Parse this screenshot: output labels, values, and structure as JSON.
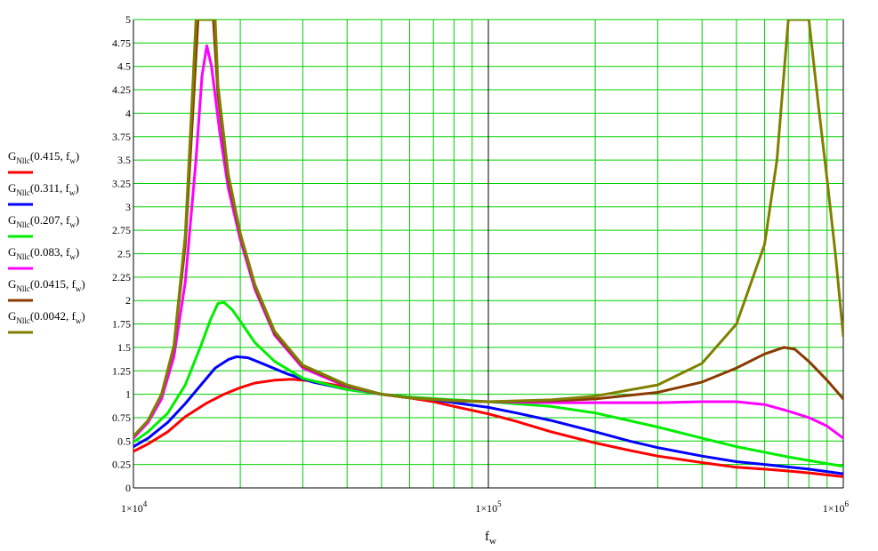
{
  "chart_data": {
    "type": "line",
    "xscale": "log",
    "xlim": [
      10000,
      1000000
    ],
    "ylim": [
      0,
      5
    ],
    "grid": true,
    "xlabel": {
      "main": "f",
      "sub": "w"
    },
    "x_ticks": [
      {
        "value": 10000,
        "mant": "1×10",
        "exp": "4"
      },
      {
        "value": 100000,
        "mant": "1×10",
        "exp": "5"
      },
      {
        "value": 1000000,
        "mant": "1×10",
        "exp": "6"
      }
    ],
    "y_ticks": [
      {
        "value": 0,
        "label": "0"
      },
      {
        "value": 0.25,
        "label": "0.25"
      },
      {
        "value": 0.5,
        "label": "0.5"
      },
      {
        "value": 0.75,
        "label": "0.75"
      },
      {
        "value": 1,
        "label": "1"
      },
      {
        "value": 1.25,
        "label": "1.25"
      },
      {
        "value": 1.5,
        "label": "1.5"
      },
      {
        "value": 1.75,
        "label": "1.75"
      },
      {
        "value": 2,
        "label": "2"
      },
      {
        "value": 2.25,
        "label": "2.25"
      },
      {
        "value": 2.5,
        "label": "2.5"
      },
      {
        "value": 2.75,
        "label": "2.75"
      },
      {
        "value": 3,
        "label": "3"
      },
      {
        "value": 3.25,
        "label": "3.25"
      },
      {
        "value": 3.5,
        "label": "3.5"
      },
      {
        "value": 3.75,
        "label": "3.75"
      },
      {
        "value": 4,
        "label": "4"
      },
      {
        "value": 4.25,
        "label": "4.25"
      },
      {
        "value": 4.5,
        "label": "4.5"
      },
      {
        "value": 4.75,
        "label": "4.75"
      },
      {
        "value": 5,
        "label": "5"
      }
    ],
    "colors": {
      "grid": "#00d000",
      "axis": "#000000",
      "background": "#ffffff"
    },
    "series": [
      {
        "name": "G_Nllc(0.415, f_w)",
        "fn": "G",
        "fsub": "Nllc",
        "arg": "0.415",
        "var": "f",
        "varsub": "w",
        "color": "#ff0000",
        "points": [
          [
            10000,
            0.39
          ],
          [
            11000,
            0.47
          ],
          [
            12500,
            0.6
          ],
          [
            14000,
            0.76
          ],
          [
            16000,
            0.9
          ],
          [
            18000,
            1.0
          ],
          [
            20000,
            1.07
          ],
          [
            22000,
            1.12
          ],
          [
            25000,
            1.15
          ],
          [
            28000,
            1.16
          ],
          [
            32000,
            1.14
          ],
          [
            38000,
            1.09
          ],
          [
            45000,
            1.04
          ],
          [
            50000,
            1.0
          ],
          [
            60000,
            0.96
          ],
          [
            70000,
            0.92
          ],
          [
            80000,
            0.87
          ],
          [
            100000,
            0.79
          ],
          [
            120000,
            0.71
          ],
          [
            150000,
            0.6
          ],
          [
            200000,
            0.48
          ],
          [
            250000,
            0.4
          ],
          [
            300000,
            0.34
          ],
          [
            400000,
            0.27
          ],
          [
            500000,
            0.22
          ],
          [
            600000,
            0.2
          ],
          [
            700000,
            0.18
          ],
          [
            800000,
            0.16
          ],
          [
            1000000,
            0.12
          ]
        ]
      },
      {
        "name": "G_Nllc(0.311, f_w)",
        "fn": "G",
        "fsub": "Nllc",
        "arg": "0.311",
        "var": "f",
        "varsub": "w",
        "color": "#0000ff",
        "points": [
          [
            10000,
            0.44
          ],
          [
            11000,
            0.53
          ],
          [
            12500,
            0.7
          ],
          [
            14000,
            0.9
          ],
          [
            15500,
            1.1
          ],
          [
            17000,
            1.28
          ],
          [
            18500,
            1.37
          ],
          [
            19500,
            1.4
          ],
          [
            21000,
            1.39
          ],
          [
            23000,
            1.33
          ],
          [
            27000,
            1.22
          ],
          [
            32000,
            1.13
          ],
          [
            40000,
            1.05
          ],
          [
            50000,
            1.0
          ],
          [
            60000,
            0.97
          ],
          [
            70000,
            0.94
          ],
          [
            80000,
            0.91
          ],
          [
            100000,
            0.86
          ],
          [
            120000,
            0.8
          ],
          [
            150000,
            0.72
          ],
          [
            200000,
            0.6
          ],
          [
            250000,
            0.5
          ],
          [
            300000,
            0.43
          ],
          [
            400000,
            0.34
          ],
          [
            500000,
            0.28
          ],
          [
            600000,
            0.25
          ],
          [
            800000,
            0.2
          ],
          [
            1000000,
            0.15
          ]
        ]
      },
      {
        "name": "G_Nllc(0.207, f_w)",
        "fn": "G",
        "fsub": "Nllc",
        "arg": "0.207",
        "var": "f",
        "varsub": "w",
        "color": "#00ee00",
        "points": [
          [
            10000,
            0.49
          ],
          [
            11000,
            0.6
          ],
          [
            12500,
            0.8
          ],
          [
            14000,
            1.1
          ],
          [
            15500,
            1.52
          ],
          [
            16500,
            1.8
          ],
          [
            17300,
            1.97
          ],
          [
            18000,
            1.98
          ],
          [
            19000,
            1.9
          ],
          [
            20000,
            1.78
          ],
          [
            22000,
            1.55
          ],
          [
            25000,
            1.35
          ],
          [
            30000,
            1.17
          ],
          [
            40000,
            1.05
          ],
          [
            50000,
            1.0
          ],
          [
            60000,
            0.97
          ],
          [
            80000,
            0.94
          ],
          [
            100000,
            0.92
          ],
          [
            150000,
            0.87
          ],
          [
            200000,
            0.8
          ],
          [
            300000,
            0.65
          ],
          [
            400000,
            0.53
          ],
          [
            500000,
            0.44
          ],
          [
            700000,
            0.33
          ],
          [
            1000000,
            0.23
          ]
        ]
      },
      {
        "name": "G_Nllc(0.083, f_w)",
        "fn": "G",
        "fsub": "Nllc",
        "arg": "0.083",
        "var": "f",
        "varsub": "w",
        "color": "#ff00ff",
        "points": [
          [
            10000,
            0.53
          ],
          [
            11000,
            0.7
          ],
          [
            12000,
            0.95
          ],
          [
            13000,
            1.4
          ],
          [
            14000,
            2.2
          ],
          [
            15000,
            3.5
          ],
          [
            15600,
            4.4
          ],
          [
            16100,
            4.72
          ],
          [
            16600,
            4.5
          ],
          [
            17500,
            3.8
          ],
          [
            18500,
            3.2
          ],
          [
            20000,
            2.65
          ],
          [
            22000,
            2.12
          ],
          [
            25000,
            1.63
          ],
          [
            30000,
            1.28
          ],
          [
            40000,
            1.08
          ],
          [
            50000,
            1.0
          ],
          [
            60000,
            0.96
          ],
          [
            80000,
            0.93
          ],
          [
            100000,
            0.92
          ],
          [
            150000,
            0.91
          ],
          [
            200000,
            0.91
          ],
          [
            300000,
            0.91
          ],
          [
            400000,
            0.92
          ],
          [
            500000,
            0.92
          ],
          [
            600000,
            0.89
          ],
          [
            700000,
            0.82
          ],
          [
            800000,
            0.75
          ],
          [
            900000,
            0.66
          ],
          [
            1000000,
            0.53
          ]
        ]
      },
      {
        "name": "G_Nllc(0.0415, f_w)",
        "fn": "G",
        "fsub": "Nllc",
        "arg": "0.0415",
        "var": "f",
        "varsub": "w",
        "color": "#8b3a00",
        "points": [
          [
            10000,
            0.55
          ],
          [
            11000,
            0.72
          ],
          [
            12000,
            1.0
          ],
          [
            13000,
            1.5
          ],
          [
            14000,
            2.6
          ],
          [
            14800,
            4.2
          ],
          [
            15200,
            5.0
          ],
          [
            16800,
            5.0
          ],
          [
            17300,
            4.2
          ],
          [
            18500,
            3.3
          ],
          [
            20000,
            2.7
          ],
          [
            22000,
            2.15
          ],
          [
            25000,
            1.65
          ],
          [
            30000,
            1.3
          ],
          [
            40000,
            1.09
          ],
          [
            50000,
            1.0
          ],
          [
            60000,
            0.96
          ],
          [
            80000,
            0.93
          ],
          [
            100000,
            0.92
          ],
          [
            150000,
            0.93
          ],
          [
            200000,
            0.95
          ],
          [
            300000,
            1.02
          ],
          [
            400000,
            1.13
          ],
          [
            500000,
            1.28
          ],
          [
            600000,
            1.43
          ],
          [
            680000,
            1.5
          ],
          [
            730000,
            1.48
          ],
          [
            800000,
            1.35
          ],
          [
            900000,
            1.15
          ],
          [
            1000000,
            0.95
          ]
        ]
      },
      {
        "name": "G_Nllc(0.0042, f_w)",
        "fn": "G",
        "fsub": "Nllc",
        "arg": "0.0042",
        "var": "f",
        "varsub": "w",
        "color": "#808000",
        "points": [
          [
            10000,
            0.55
          ],
          [
            11000,
            0.72
          ],
          [
            12000,
            1.0
          ],
          [
            13000,
            1.52
          ],
          [
            14000,
            2.7
          ],
          [
            14700,
            4.3
          ],
          [
            15000,
            5.0
          ],
          [
            17000,
            5.0
          ],
          [
            17300,
            4.3
          ],
          [
            18500,
            3.35
          ],
          [
            20000,
            2.72
          ],
          [
            22000,
            2.17
          ],
          [
            25000,
            1.67
          ],
          [
            30000,
            1.31
          ],
          [
            40000,
            1.1
          ],
          [
            50000,
            1.0
          ],
          [
            60000,
            0.96
          ],
          [
            80000,
            0.93
          ],
          [
            100000,
            0.92
          ],
          [
            150000,
            0.94
          ],
          [
            200000,
            0.98
          ],
          [
            300000,
            1.1
          ],
          [
            400000,
            1.33
          ],
          [
            500000,
            1.75
          ],
          [
            600000,
            2.6
          ],
          [
            650000,
            3.5
          ],
          [
            700000,
            5.0
          ],
          [
            800000,
            5.0
          ],
          [
            850000,
            4.1
          ],
          [
            900000,
            3.3
          ],
          [
            950000,
            2.5
          ],
          [
            1000000,
            1.62
          ]
        ]
      }
    ]
  }
}
